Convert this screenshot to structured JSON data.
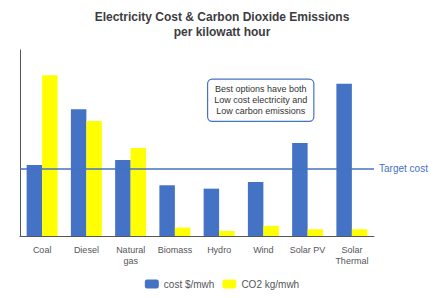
{
  "chart_data": {
    "type": "bar",
    "title": "Electricity Cost & Carbon Dioxide Emissions\nper kilowatt hour",
    "categories": [
      "Coal",
      "Diesel",
      "Natural\ngas",
      "Biomass",
      "Hydro",
      "Wind",
      "Solar PV",
      "Solar\nThermal"
    ],
    "series": [
      {
        "name": "cost $/mwh",
        "color": "#4472C4",
        "values": [
          42,
          75,
          45,
          30,
          28,
          32,
          55,
          90
        ]
      },
      {
        "name": "CO2 kg/mwh",
        "color": "#FFFF00",
        "values": [
          95,
          68,
          52,
          5,
          3,
          6,
          4,
          4
        ]
      }
    ],
    "reference_line": {
      "value": 40,
      "label": "Target cost",
      "color": "#4472C4"
    },
    "annotation": {
      "text": "Best options have both\nLow cost electricity and\nLow carbon emissions",
      "color": "#4472C4"
    },
    "ylim": [
      0,
      110
    ],
    "grid": false,
    "legend": "bottom",
    "tick_labels": "x"
  }
}
